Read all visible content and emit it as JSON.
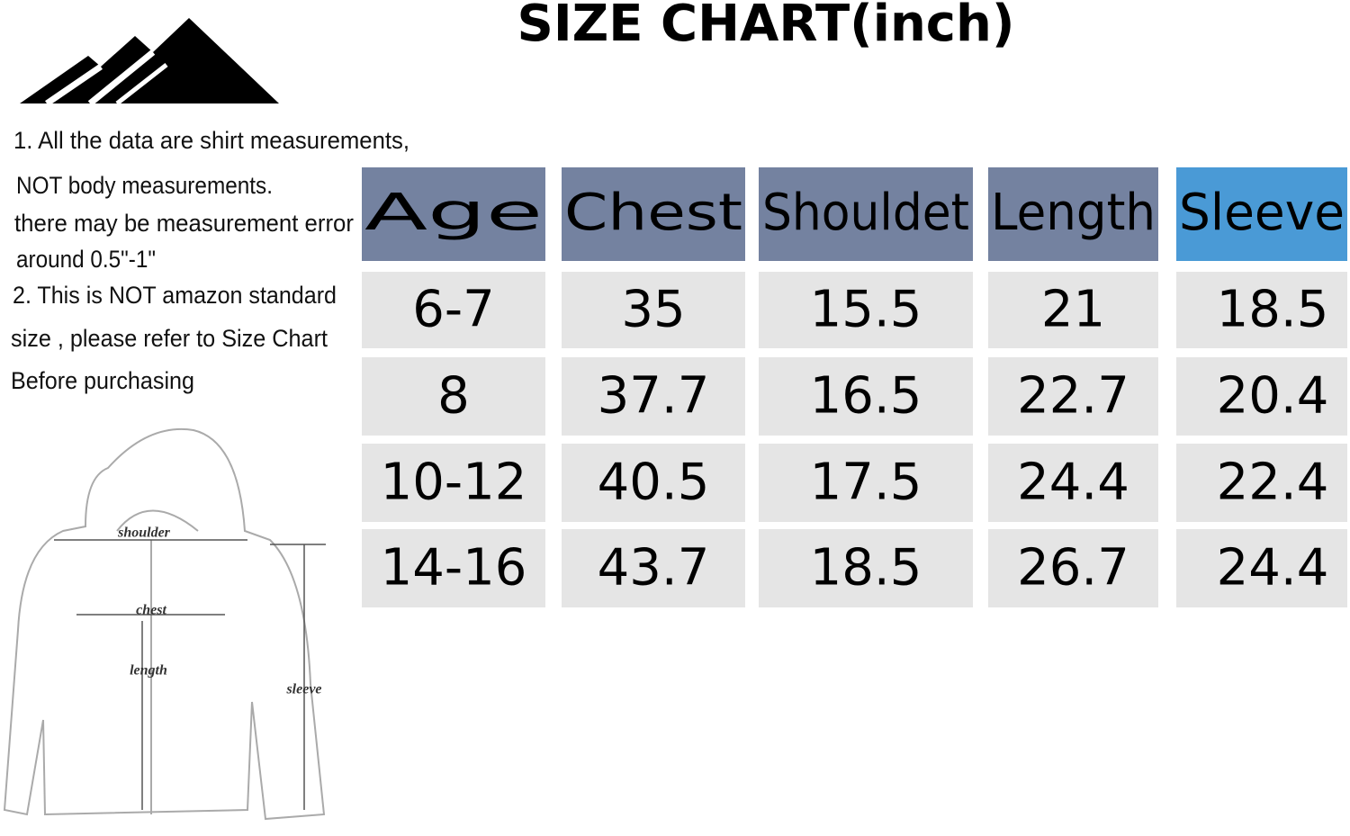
{
  "header": {
    "title": "SIZE CHART(inch)"
  },
  "notes": [
    "1. All the data are shirt measurements,",
    "NOT body measurements.",
    "there may be measurement error",
    "around 0.5\"-1\"",
    "2. This is NOT amazon standard",
    "size , please refer to Size Chart",
    "Before purchasing"
  ],
  "table": {
    "columns": [
      "Age",
      "Chest",
      "Shouldet",
      "Length",
      "Sleeve"
    ],
    "rows": [
      [
        "6-7",
        "35",
        "15.5",
        "21",
        "18.5"
      ],
      [
        "8",
        "37.7",
        "16.5",
        "22.7",
        "20.4"
      ],
      [
        "10-12",
        "40.5",
        "17.5",
        "24.4",
        "22.4"
      ],
      [
        "14-16",
        "43.7",
        "18.5",
        "26.7",
        "24.4"
      ]
    ]
  },
  "diagram": {
    "labels": [
      "shoulder",
      "chest",
      "length",
      "sleeve"
    ]
  }
}
